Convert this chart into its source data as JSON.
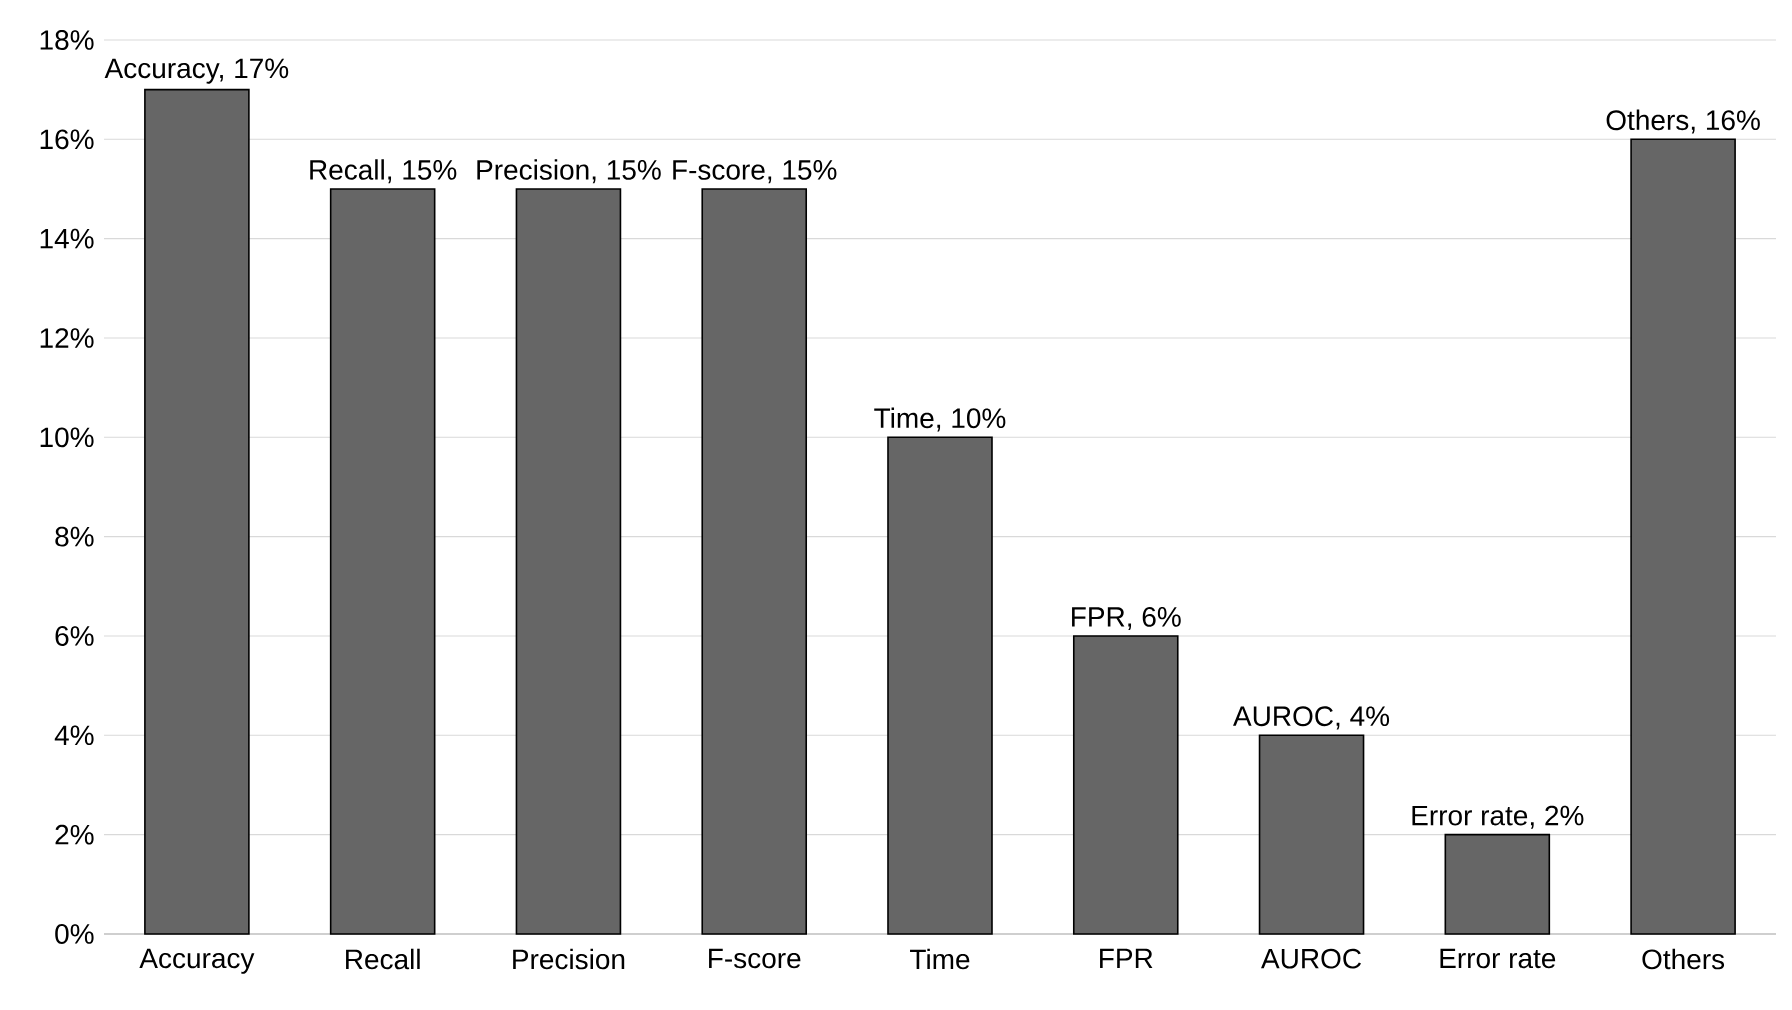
{
  "chart_data": {
    "type": "bar",
    "categories": [
      "Accuracy",
      "Recall",
      "Precision",
      "F-score",
      "Time",
      "FPR",
      "AUROC",
      "Error rate",
      "Others"
    ],
    "values": [
      17,
      15,
      15,
      15,
      10,
      6,
      4,
      2,
      16
    ],
    "value_labels": [
      "Accuracy, 17%",
      "Recall, 15%",
      "Precision, 15%",
      "F-score, 15%",
      "Time, 10%",
      "FPR, 6%",
      "AUROC, 4%",
      "Error rate, 2%",
      "Others, 16%"
    ],
    "color": "#666666",
    "ylim": [
      0,
      18
    ],
    "yticks": [
      {
        "value": 0,
        "label": "0%"
      },
      {
        "value": 2,
        "label": "2%"
      },
      {
        "value": 4,
        "label": "4%"
      },
      {
        "value": 6,
        "label": "6%"
      },
      {
        "value": 8,
        "label": "8%"
      },
      {
        "value": 10,
        "label": "10%"
      },
      {
        "value": 12,
        "label": "12%"
      },
      {
        "value": 14,
        "label": "14%"
      },
      {
        "value": 16,
        "label": "16%"
      },
      {
        "value": 18,
        "label": "18%"
      }
    ],
    "grid": "y"
  }
}
